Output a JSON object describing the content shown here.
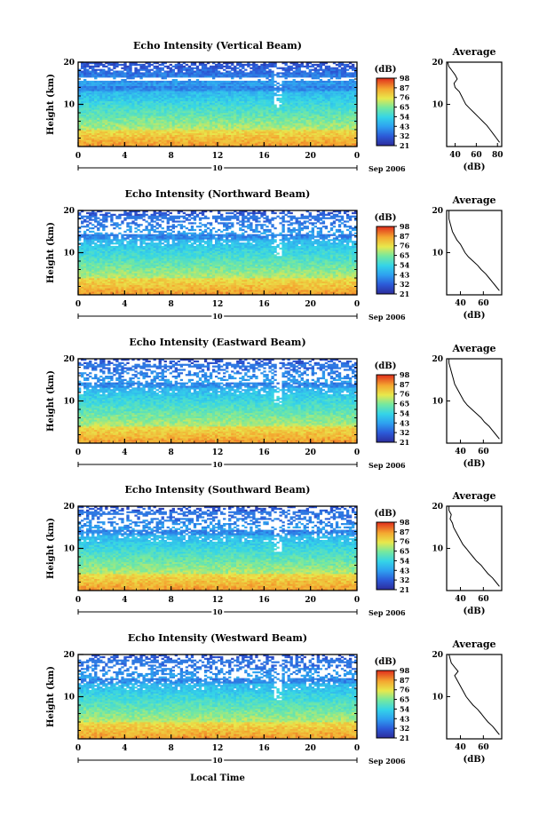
{
  "page": {
    "date_label": "Sep 2006",
    "xlabel_bottom": "Local Time",
    "colorbar_unit": "(dB)",
    "average_title": "Average",
    "average_xlabel": "(dB)",
    "height_label": "Height (km)",
    "day_marker": "10"
  },
  "chart_data": [
    {
      "type": "heatmap",
      "title": "Echo Intensity (Vertical Beam)",
      "xlabel": "",
      "ylabel": "Height (km)",
      "xlim": [
        0,
        24
      ],
      "ylim": [
        0,
        20
      ],
      "x_ticks": [
        "0",
        "4",
        "8",
        "12",
        "16",
        "20",
        "0"
      ],
      "y_ticks": [
        "10",
        "20"
      ],
      "colorbar_label": "(dB)",
      "colorbar_ticks": [
        "21",
        "32",
        "43",
        "54",
        "65",
        "76",
        "87",
        "98"
      ],
      "average_profile": {
        "title": "Average",
        "xlabel": "(dB)",
        "x_ticks": [
          "40",
          "60",
          "80"
        ],
        "xlim": [
          32,
          84
        ],
        "y_ticks": [
          "10",
          "20"
        ],
        "points": [
          [
            82,
            1
          ],
          [
            79,
            2
          ],
          [
            76,
            3
          ],
          [
            73,
            4
          ],
          [
            70,
            5
          ],
          [
            66,
            6
          ],
          [
            62,
            7
          ],
          [
            58,
            8
          ],
          [
            54,
            9
          ],
          [
            50,
            10
          ],
          [
            48,
            11
          ],
          [
            46,
            12
          ],
          [
            44,
            13
          ],
          [
            40,
            14
          ],
          [
            39,
            15
          ],
          [
            42,
            16
          ],
          [
            40,
            17
          ],
          [
            37,
            18
          ],
          [
            34,
            19
          ],
          [
            33,
            20
          ]
        ]
      }
    },
    {
      "type": "heatmap",
      "title": "Echo Intensity (Northward Beam)",
      "xlabel": "",
      "ylabel": "Height (km)",
      "xlim": [
        0,
        24
      ],
      "ylim": [
        0,
        20
      ],
      "x_ticks": [
        "0",
        "4",
        "8",
        "12",
        "16",
        "20",
        "0"
      ],
      "y_ticks": [
        "10",
        "20"
      ],
      "colorbar_label": "(dB)",
      "colorbar_ticks": [
        "21",
        "32",
        "43",
        "54",
        "65",
        "76",
        "87",
        "98"
      ],
      "average_profile": {
        "title": "Average",
        "xlabel": "(dB)",
        "x_ticks": [
          "40",
          "60"
        ],
        "xlim": [
          28,
          76
        ],
        "y_ticks": [
          "10",
          "20"
        ],
        "points": [
          [
            74,
            1
          ],
          [
            71,
            2
          ],
          [
            68,
            3
          ],
          [
            65,
            4
          ],
          [
            62,
            5
          ],
          [
            58,
            6
          ],
          [
            55,
            7
          ],
          [
            51,
            8
          ],
          [
            47,
            9
          ],
          [
            44,
            10
          ],
          [
            42,
            11
          ],
          [
            40,
            12
          ],
          [
            37,
            13
          ],
          [
            35,
            14
          ],
          [
            33,
            15
          ],
          [
            32,
            16
          ],
          [
            31,
            17
          ],
          [
            30,
            18
          ],
          [
            30,
            19
          ],
          [
            30,
            20
          ]
        ]
      }
    },
    {
      "type": "heatmap",
      "title": "Echo Intensity (Eastward Beam)",
      "xlabel": "",
      "ylabel": "Height (km)",
      "xlim": [
        0,
        24
      ],
      "ylim": [
        0,
        20
      ],
      "x_ticks": [
        "0",
        "4",
        "8",
        "12",
        "16",
        "20",
        "0"
      ],
      "y_ticks": [
        "10",
        "20"
      ],
      "colorbar_label": "(dB)",
      "colorbar_ticks": [
        "21",
        "32",
        "43",
        "54",
        "65",
        "76",
        "87",
        "98"
      ],
      "average_profile": {
        "title": "Average",
        "xlabel": "(dB)",
        "x_ticks": [
          "40",
          "60"
        ],
        "xlim": [
          28,
          76
        ],
        "y_ticks": [
          "10",
          "20"
        ],
        "points": [
          [
            74,
            1
          ],
          [
            71,
            2
          ],
          [
            68,
            3
          ],
          [
            65,
            4
          ],
          [
            61,
            5
          ],
          [
            58,
            6
          ],
          [
            54,
            7
          ],
          [
            50,
            8
          ],
          [
            46,
            9
          ],
          [
            43,
            10
          ],
          [
            41,
            11
          ],
          [
            39,
            12
          ],
          [
            37,
            13
          ],
          [
            35,
            14
          ],
          [
            34,
            15
          ],
          [
            33,
            16
          ],
          [
            32,
            17
          ],
          [
            31,
            18
          ],
          [
            30,
            19
          ],
          [
            30,
            20
          ]
        ]
      }
    },
    {
      "type": "heatmap",
      "title": "Echo Intensity (Southward Beam)",
      "xlabel": "",
      "ylabel": "Height (km)",
      "xlim": [
        0,
        24
      ],
      "ylim": [
        0,
        20
      ],
      "x_ticks": [
        "0",
        "4",
        "8",
        "12",
        "16",
        "20",
        "0"
      ],
      "y_ticks": [
        "10",
        "20"
      ],
      "colorbar_label": "(dB)",
      "colorbar_ticks": [
        "21",
        "32",
        "43",
        "54",
        "65",
        "76",
        "87",
        "98"
      ],
      "average_profile": {
        "title": "Average",
        "xlabel": "(dB)",
        "x_ticks": [
          "40",
          "60"
        ],
        "xlim": [
          28,
          76
        ],
        "y_ticks": [
          "10",
          "20"
        ],
        "points": [
          [
            74,
            1
          ],
          [
            71,
            2
          ],
          [
            68,
            3
          ],
          [
            64,
            4
          ],
          [
            61,
            5
          ],
          [
            58,
            6
          ],
          [
            54,
            7
          ],
          [
            51,
            8
          ],
          [
            48,
            9
          ],
          [
            45,
            10
          ],
          [
            42,
            11
          ],
          [
            40,
            12
          ],
          [
            38,
            13
          ],
          [
            36,
            14
          ],
          [
            34,
            15
          ],
          [
            33,
            16
          ],
          [
            31,
            17
          ],
          [
            32,
            18
          ],
          [
            30,
            19
          ],
          [
            30,
            20
          ]
        ]
      }
    },
    {
      "type": "heatmap",
      "title": "Echo Intensity (Westward Beam)",
      "xlabel": "Local Time",
      "ylabel": "Height (km)",
      "xlim": [
        0,
        24
      ],
      "ylim": [
        0,
        20
      ],
      "x_ticks": [
        "0",
        "4",
        "8",
        "12",
        "16",
        "20",
        "0"
      ],
      "y_ticks": [
        "10",
        "20"
      ],
      "colorbar_label": "(dB)",
      "colorbar_ticks": [
        "21",
        "32",
        "43",
        "54",
        "65",
        "76",
        "87",
        "98"
      ],
      "average_profile": {
        "title": "Average",
        "xlabel": "(dB)",
        "x_ticks": [
          "40",
          "60"
        ],
        "xlim": [
          28,
          76
        ],
        "y_ticks": [
          "10",
          "20"
        ],
        "points": [
          [
            74,
            1
          ],
          [
            71,
            2
          ],
          [
            68,
            3
          ],
          [
            64,
            4
          ],
          [
            61,
            5
          ],
          [
            58,
            6
          ],
          [
            55,
            7
          ],
          [
            51,
            8
          ],
          [
            48,
            9
          ],
          [
            45,
            10
          ],
          [
            43,
            11
          ],
          [
            41,
            12
          ],
          [
            39,
            13
          ],
          [
            37,
            14
          ],
          [
            35,
            15
          ],
          [
            38,
            16
          ],
          [
            35,
            17
          ],
          [
            32,
            18
          ],
          [
            31,
            19
          ],
          [
            30,
            20
          ]
        ]
      }
    }
  ]
}
